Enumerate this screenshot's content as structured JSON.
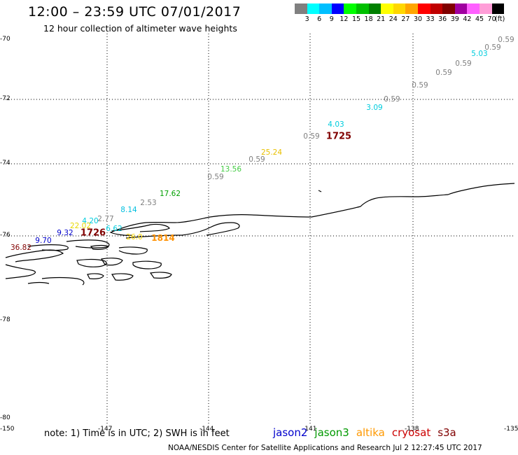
{
  "header": {
    "title": "12:00 – 23:59 UTC 07/01/2017",
    "subtitle": "12 hour collection of altimeter wave heights"
  },
  "color_scale": {
    "colors": [
      "#808080",
      "#00ffff",
      "#00bfff",
      "#0000ff",
      "#00ff00",
      "#00c000",
      "#008000",
      "#ffff00",
      "#ffd700",
      "#ffa500",
      "#ff0000",
      "#c00000",
      "#800000",
      "#a000a0",
      "#ff60ff",
      "#ff9ed8",
      "#000000"
    ],
    "labels": [
      "3",
      "6",
      "9",
      "12",
      "15",
      "18",
      "21",
      "24",
      "27",
      "30",
      "33",
      "36",
      "39",
      "42",
      "45",
      "70",
      "(ft)"
    ]
  },
  "axes": {
    "lat_labels": [
      "-70",
      "-72",
      "-74",
      "-76",
      "-78",
      "-80"
    ],
    "lon_labels": [
      "-150",
      "-147",
      "-144",
      "-141",
      "-138",
      "-135"
    ]
  },
  "wave_heights": [
    {
      "text": "0.59",
      "color": "#808080"
    },
    {
      "text": "0.59",
      "color": "#808080"
    },
    {
      "text": "5.03",
      "color": "#00ccdd"
    },
    {
      "text": "0.59",
      "color": "#808080"
    },
    {
      "text": "0.59",
      "color": "#808080"
    },
    {
      "text": "0.59",
      "color": "#808080"
    },
    {
      "text": "0.59",
      "color": "#808080"
    },
    {
      "text": "3.09",
      "color": "#00ccdd"
    },
    {
      "text": "4.03",
      "color": "#00ccdd"
    },
    {
      "text": "0.59",
      "color": "#808080"
    },
    {
      "text": "25.24",
      "color": "#e8c000"
    },
    {
      "text": "0.59",
      "color": "#808080"
    },
    {
      "text": "13.56",
      "color": "#44cc44"
    },
    {
      "text": "0.59",
      "color": "#808080"
    },
    {
      "text": "17.62",
      "color": "#00a000"
    },
    {
      "text": "2.53",
      "color": "#808080"
    },
    {
      "text": "8.14",
      "color": "#00bfdf"
    },
    {
      "text": "2.77",
      "color": "#808080"
    },
    {
      "text": "4.20",
      "color": "#00ccdd"
    },
    {
      "text": "22.02",
      "color": "#e8d800"
    },
    {
      "text": "6.62",
      "color": "#00ccdd"
    },
    {
      "text": "9.32",
      "color": "#0000cc"
    },
    {
      "text": "9.70",
      "color": "#0000cc"
    },
    {
      "text": "36.82",
      "color": "#800000"
    },
    {
      "text": "26.0",
      "color": "#ffd700"
    },
    {
      "text": "1814",
      "color": "#ff9000"
    }
  ],
  "time_labels": [
    {
      "text": "1725",
      "color": "#800000"
    },
    {
      "text": "1726",
      "color": "#800000"
    }
  ],
  "footer": {
    "note": "note: 1) Time is in UTC; 2) SWH is in feet",
    "credit": "NOAA/NESDIS Center for Satellite Applications and Research    Jul  2 12:27:45 UTC 2017"
  },
  "legend": [
    {
      "label": "jason2",
      "color": "#0000cc"
    },
    {
      "label": "jason3",
      "color": "#009900"
    },
    {
      "label": "altika",
      "color": "#ff9900"
    },
    {
      "label": "cryosat",
      "color": "#cc0000"
    },
    {
      "label": "s3a",
      "color": "#800000"
    }
  ]
}
